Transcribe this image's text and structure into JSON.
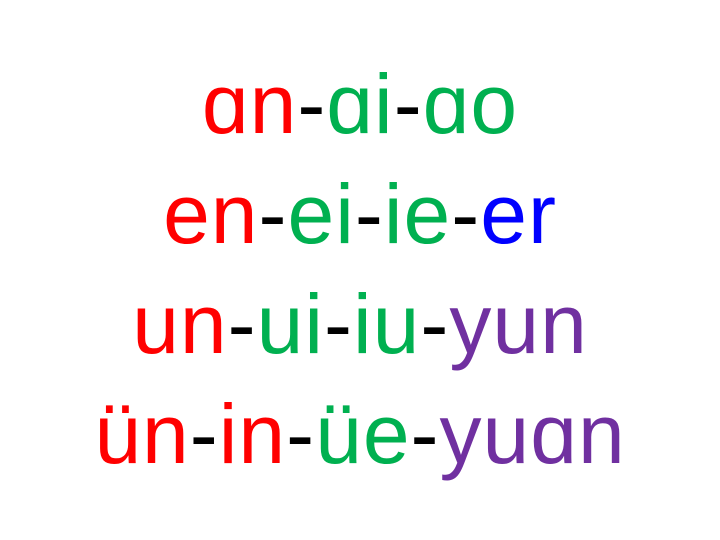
{
  "colors": {
    "red": "#ff0000",
    "green": "#00b050",
    "blue": "#0000ff",
    "purple": "#7030a0",
    "black": "#000000",
    "background": "#ffffff"
  },
  "lines": [
    {
      "segments": [
        {
          "text": "ɑn",
          "color": "#ff0000"
        },
        {
          "text": "-",
          "color": "#000000"
        },
        {
          "text": "ɑi",
          "color": "#00b050"
        },
        {
          "text": "-",
          "color": "#000000"
        },
        {
          "text": "ɑo",
          "color": "#00b050"
        }
      ]
    },
    {
      "segments": [
        {
          "text": "en",
          "color": "#ff0000"
        },
        {
          "text": "-",
          "color": "#000000"
        },
        {
          "text": "ei",
          "color": "#00b050"
        },
        {
          "text": "-",
          "color": "#000000"
        },
        {
          "text": "ie",
          "color": "#00b050"
        },
        {
          "text": "-",
          "color": "#000000"
        },
        {
          "text": "er",
          "color": "#0000ff"
        }
      ]
    },
    {
      "segments": [
        {
          "text": "un",
          "color": "#ff0000"
        },
        {
          "text": "-",
          "color": "#000000"
        },
        {
          "text": "ui",
          "color": "#00b050"
        },
        {
          "text": "-",
          "color": "#000000"
        },
        {
          "text": "iu",
          "color": "#00b050"
        },
        {
          "text": "-",
          "color": "#000000"
        },
        {
          "text": "yun",
          "color": "#7030a0"
        }
      ]
    },
    {
      "segments": [
        {
          "text": "ün",
          "color": "#ff0000"
        },
        {
          "text": "-",
          "color": "#000000"
        },
        {
          "text": "in",
          "color": "#ff0000"
        },
        {
          "text": "-",
          "color": "#000000"
        },
        {
          "text": "üe",
          "color": "#00b050"
        },
        {
          "text": "-",
          "color": "#000000"
        },
        {
          "text": "yuɑn",
          "color": "#7030a0"
        }
      ]
    }
  ]
}
